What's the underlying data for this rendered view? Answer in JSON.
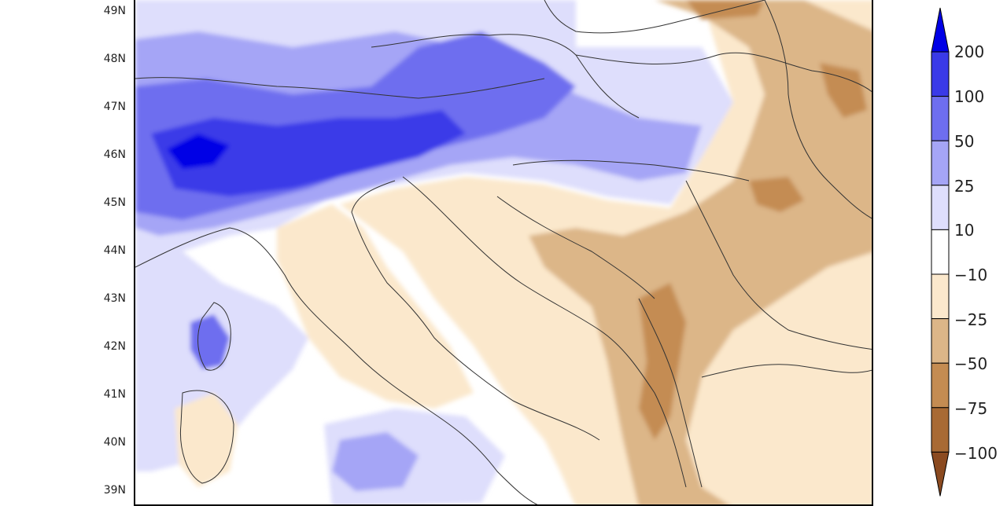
{
  "latitude_labels": [
    "49N",
    "48N",
    "47N",
    "46N",
    "45N",
    "44N",
    "43N",
    "42N",
    "41N",
    "40N",
    "39N"
  ],
  "colorbar": {
    "labels": [
      "200",
      "100",
      "50",
      "25",
      "10",
      "−10",
      "−25",
      "−50",
      "−75",
      "−100"
    ],
    "colors": [
      "#0000e6",
      "#3a3ae8",
      "#6e6eef",
      "#a5a5f6",
      "#dedefc",
      "#ffffff",
      "#fbe8cc",
      "#dcb688",
      "#c48c52",
      "#a86a34",
      "#8b4a20"
    ]
  },
  "colors": {
    "frame": "#000000",
    "border": "#333333"
  }
}
